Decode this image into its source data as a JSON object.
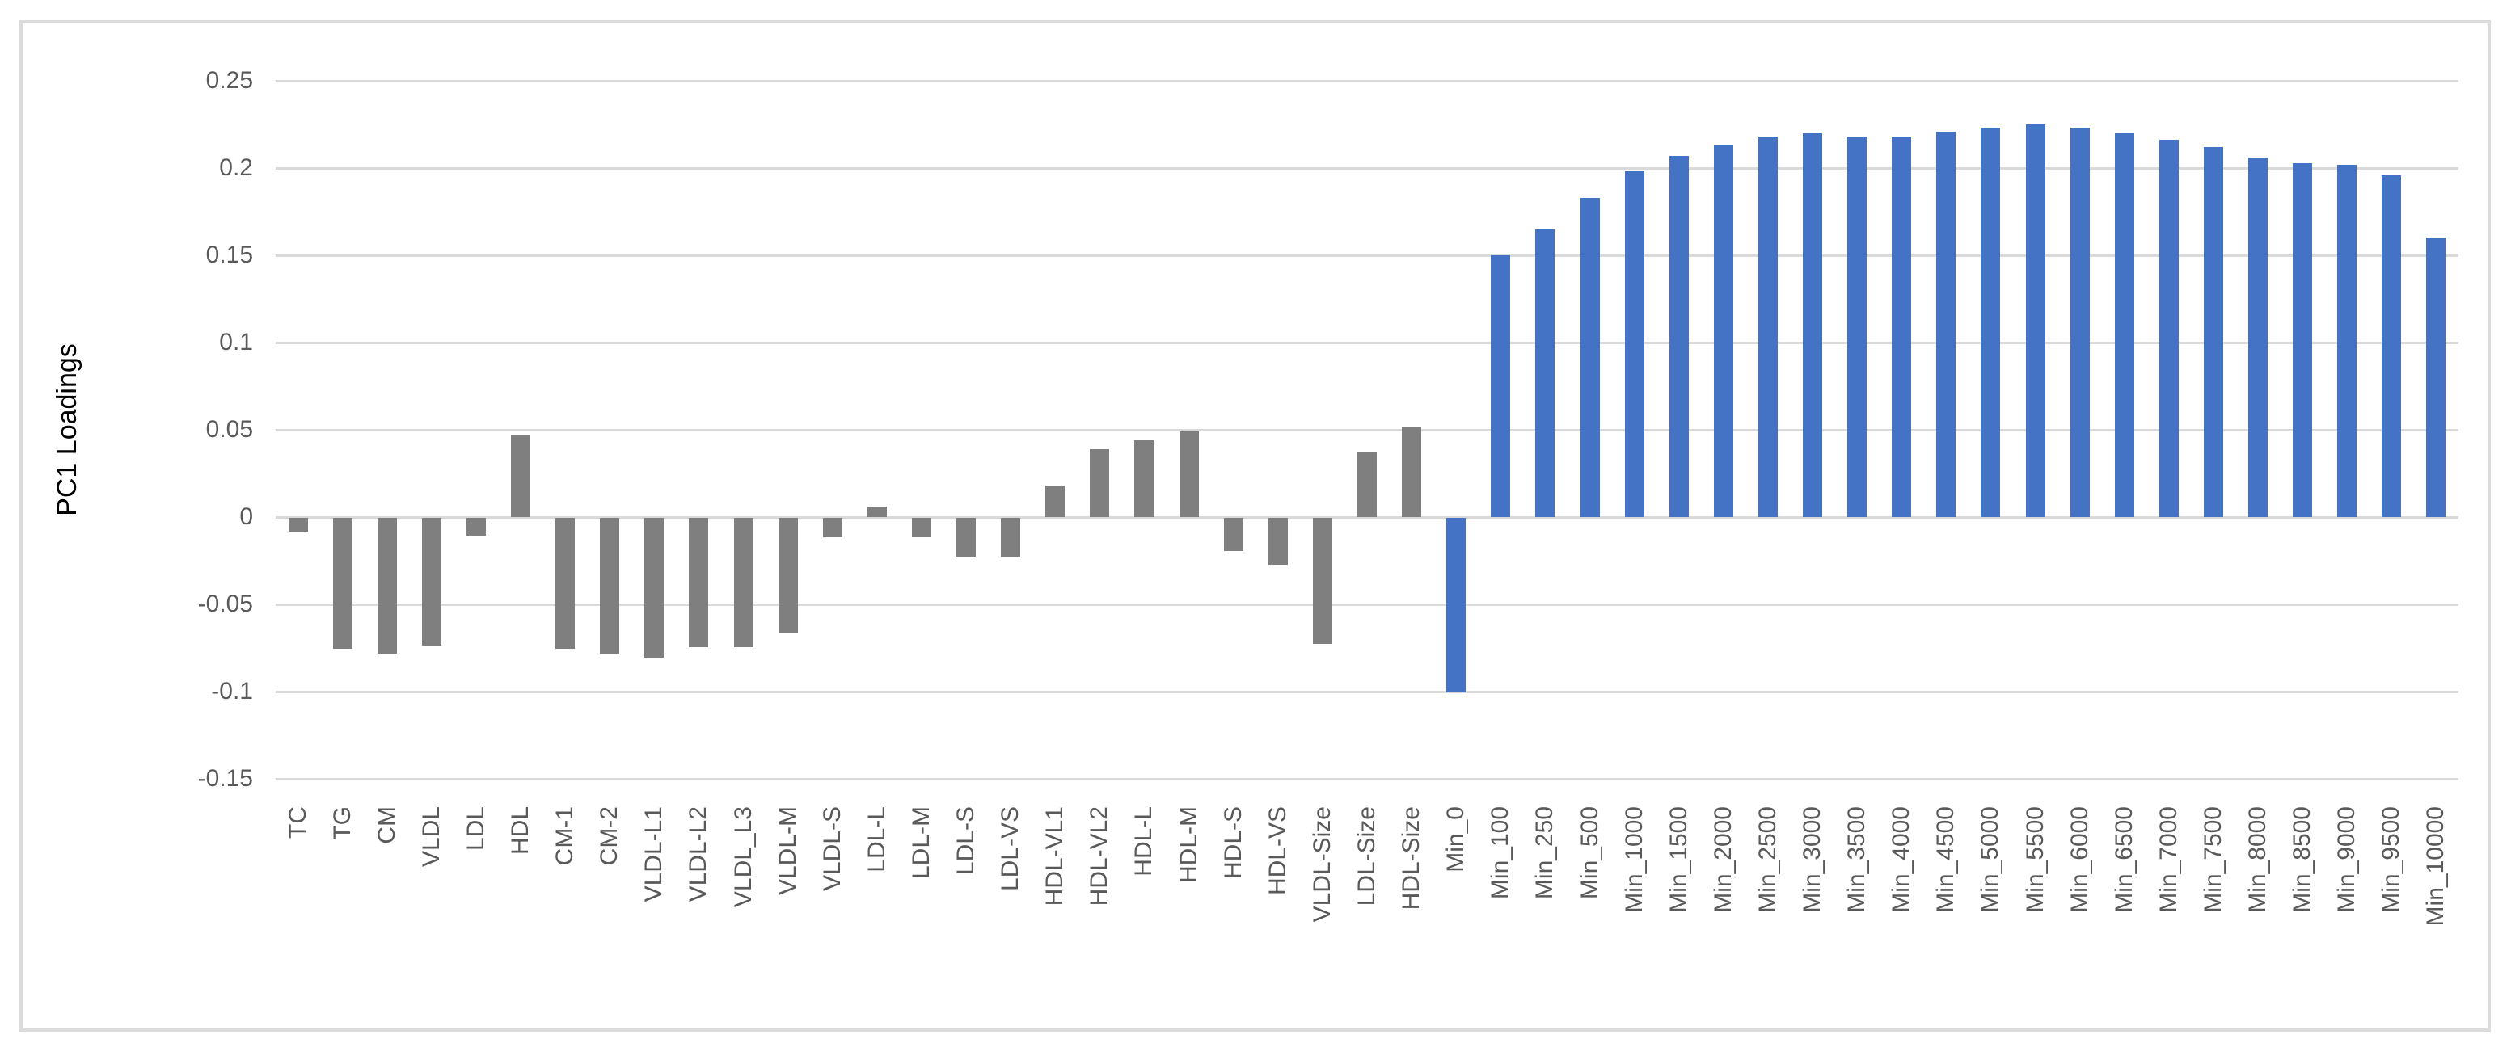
{
  "colors": {
    "lipid_series": "#7F7F7F",
    "min_series": "#4472C4",
    "gridline": "#D9D9D9",
    "text": "#595959",
    "border": "#DBDBDB",
    "background": "#FFFFFF"
  },
  "chart_data": {
    "type": "bar",
    "title": "",
    "xlabel": "",
    "ylabel": "PC1 Loadings",
    "ylim": [
      -0.15,
      0.25
    ],
    "grid": true,
    "legend": false,
    "yticks": [
      {
        "label": "0.25",
        "value": 0.25
      },
      {
        "label": "0.2",
        "value": 0.2
      },
      {
        "label": "0.15",
        "value": 0.15
      },
      {
        "label": "0.1",
        "value": 0.1
      },
      {
        "label": "0.05",
        "value": 0.05
      },
      {
        "label": "0",
        "value": 0
      },
      {
        "label": "-0.05",
        "value": -0.05
      },
      {
        "label": "-0.1",
        "value": -0.1
      },
      {
        "label": "-0.15",
        "value": -0.15
      }
    ],
    "categories": [
      "TC",
      "TG",
      "CM",
      "VLDL",
      "LDL",
      "HDL",
      "CM-1",
      "CM-2",
      "VLDL-L1",
      "VLDL-L2",
      "VLDL_L3",
      "VLDL-M",
      "VLDL-S",
      "LDL-L",
      "LDL-M",
      "LDL-S",
      "LDL-VS",
      "HDL-VL1",
      "HDL-VL2",
      "HDL-L",
      "HDL-M",
      "HDL-S",
      "HDL-VS",
      "VLDL-Size",
      "LDL-Size",
      "HDL-Size",
      "Min_0",
      "Min_100",
      "Min_250",
      "Min_500",
      "Min_1000",
      "Min_1500",
      "Min_2000",
      "Min_2500",
      "Min_3000",
      "Min_3500",
      "Min_4000",
      "Min_4500",
      "Min_5000",
      "Min_5500",
      "Min_6000",
      "Min_6500",
      "Min_7000",
      "Min_7500",
      "Min_8000",
      "Min_8500",
      "Min_9000",
      "Min_9500",
      "Min_10000"
    ],
    "values": [
      -0.008,
      -0.075,
      -0.078,
      -0.073,
      -0.01,
      0.047,
      -0.075,
      -0.078,
      -0.08,
      -0.074,
      -0.074,
      -0.066,
      -0.011,
      0.006,
      -0.011,
      -0.022,
      -0.022,
      0.018,
      0.039,
      0.044,
      0.049,
      -0.019,
      -0.027,
      -0.072,
      0.037,
      0.052,
      -0.1,
      0.15,
      0.165,
      0.183,
      0.198,
      0.207,
      0.213,
      0.218,
      0.22,
      0.218,
      0.218,
      0.221,
      0.223,
      0.225,
      0.223,
      0.22,
      0.216,
      0.212,
      0.206,
      0.203,
      0.202,
      0.196,
      0.16
    ],
    "color_groups": [
      {
        "start": 0,
        "end": 25,
        "color_key": "lipid_series"
      },
      {
        "start": 26,
        "end": 48,
        "color_key": "min_series"
      }
    ]
  }
}
